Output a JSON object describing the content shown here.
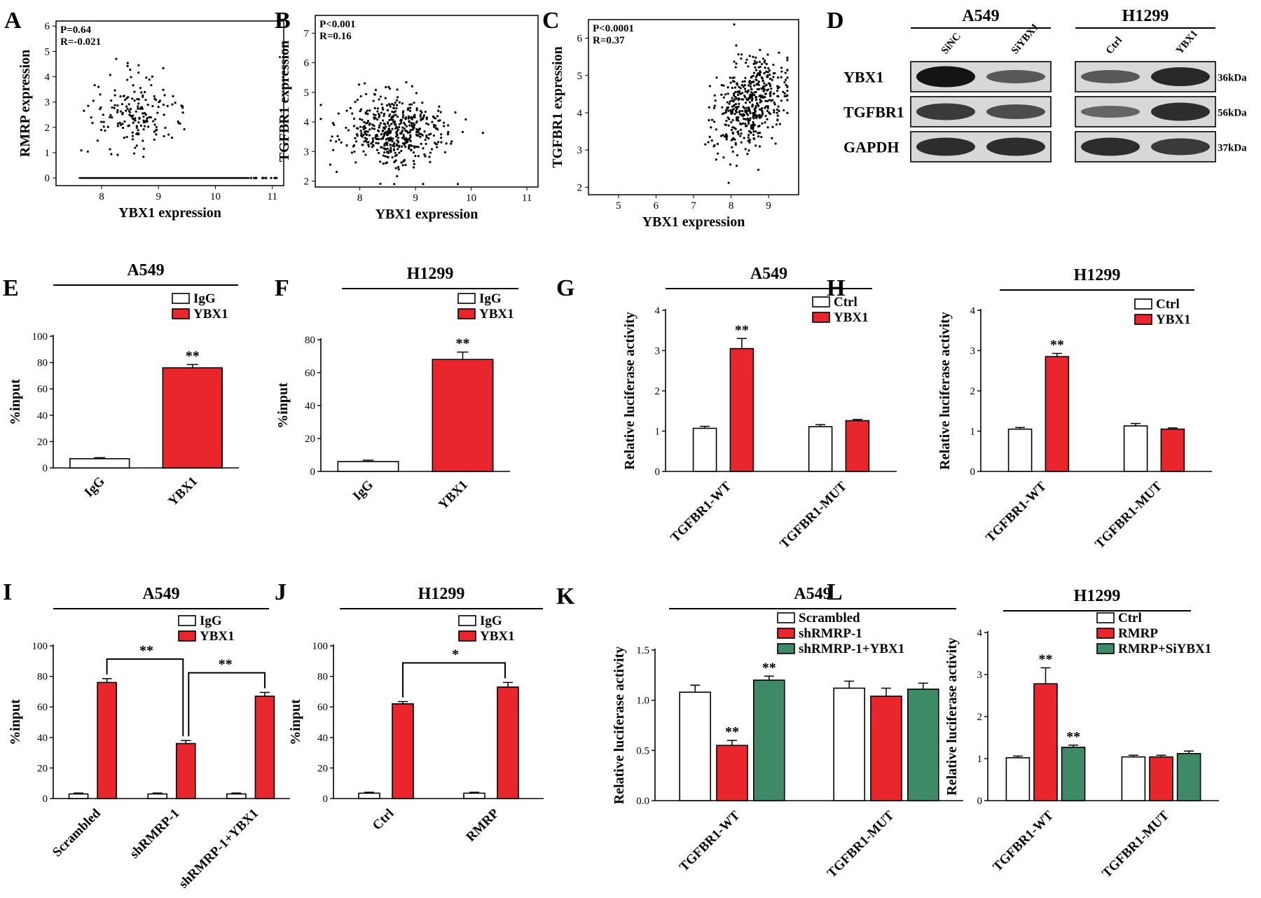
{
  "panel_labels": [
    "A",
    "B",
    "C",
    "D",
    "E",
    "F",
    "G",
    "H",
    "I",
    "J",
    "K",
    "L"
  ],
  "colors": {
    "white_bar": "#ffffff",
    "red_bar": "#e8262b",
    "green_bar": "#3f8a66",
    "axis": "#000000"
  },
  "chart_data": [
    {
      "panel": "A",
      "type": "scatter",
      "xlabel": "YBX1 expression",
      "ylabel": "RMRP expression",
      "xlim": [
        7.2,
        11.2
      ],
      "ylim": [
        -0.3,
        6.2
      ],
      "xticks": [
        "8",
        "9",
        "10",
        "11"
      ],
      "yticks": [
        "0",
        "1",
        "2",
        "3",
        "4",
        "5",
        "6"
      ],
      "annotations": [
        "P=0.64",
        "R=-0.021"
      ],
      "n_points": 180,
      "point_center": [
        8.6,
        2.7
      ],
      "point_spread": [
        0.4,
        0.8
      ],
      "zero_line": [
        7.6,
        10.6
      ]
    },
    {
      "panel": "B",
      "type": "scatter",
      "xlabel": "YBX1 expression",
      "ylabel": "TGFBR1 expression",
      "xlim": [
        7.2,
        11.2
      ],
      "ylim": [
        1.8,
        7.6
      ],
      "xticks": [
        "8",
        "9",
        "10",
        "11"
      ],
      "yticks": [
        "2",
        "3",
        "4",
        "5",
        "6",
        "7"
      ],
      "annotations": [
        "P<0.001",
        "R=0.16"
      ],
      "n_points": 500,
      "point_center": [
        8.6,
        3.7
      ],
      "point_spread": [
        0.45,
        0.6
      ]
    },
    {
      "panel": "C",
      "type": "scatter",
      "xlabel": "YBX1 expression",
      "ylabel": "TGFBR1 expression",
      "xlim": [
        4.2,
        9.8
      ],
      "ylim": [
        1.8,
        6.5
      ],
      "xticks": [
        "5",
        "6",
        "7",
        "8",
        "9"
      ],
      "yticks": [
        "2",
        "3",
        "4",
        "5",
        "6"
      ],
      "annotations": [
        "P<0.0001",
        "R=0.37"
      ],
      "n_points": 480,
      "point_center": [
        8.5,
        4.3
      ],
      "point_spread": [
        0.5,
        0.7
      ]
    },
    {
      "panel": "E",
      "type": "bar",
      "title": "A549",
      "ylabel": "%input",
      "ylim": [
        0,
        100
      ],
      "yticks": [
        "0",
        "20",
        "40",
        "60",
        "80",
        "100"
      ],
      "categories": [
        "IgG",
        "YBX1"
      ],
      "series": [
        {
          "name": "",
          "values": [
            7,
            76
          ],
          "errors": [
            0.8,
            2.5
          ],
          "colors": [
            "#ffffff",
            "#e8262b"
          ]
        }
      ],
      "legend": [
        {
          "name": "IgG",
          "color": "#ffffff"
        },
        {
          "name": "YBX1",
          "color": "#e8262b"
        }
      ],
      "significance": [
        {
          "label": "**",
          "bar": 1
        }
      ]
    },
    {
      "panel": "F",
      "type": "bar",
      "title": "H1299",
      "ylabel": "%input",
      "ylim": [
        0,
        80
      ],
      "yticks": [
        "0",
        "20",
        "40",
        "60",
        "80"
      ],
      "categories": [
        "IgG",
        "YBX1"
      ],
      "series": [
        {
          "name": "",
          "values": [
            6,
            68
          ],
          "errors": [
            0.8,
            4.5
          ],
          "colors": [
            "#ffffff",
            "#e8262b"
          ]
        }
      ],
      "legend": [
        {
          "name": "IgG",
          "color": "#ffffff"
        },
        {
          "name": "YBX1",
          "color": "#e8262b"
        }
      ],
      "significance": [
        {
          "label": "**",
          "bar": 1
        }
      ]
    },
    {
      "panel": "G",
      "type": "bar",
      "title": "A549",
      "ylabel": "Relative luciferase activity",
      "ylim": [
        0,
        4
      ],
      "yticks": [
        "0",
        "1",
        "2",
        "3",
        "4"
      ],
      "categories": [
        "TGFBR1-WT",
        "TGFBR1-MUT"
      ],
      "series": [
        {
          "name": "Ctrl",
          "values": [
            1.07,
            1.11
          ],
          "errors": [
            0.05,
            0.05
          ],
          "color": "#ffffff"
        },
        {
          "name": "YBX1",
          "values": [
            3.05,
            1.26
          ],
          "errors": [
            0.25,
            0.03
          ],
          "color": "#e8262b"
        }
      ],
      "significance": [
        {
          "label": "**",
          "series": 1,
          "category": 0
        }
      ]
    },
    {
      "panel": "H",
      "type": "bar",
      "title": "H1299",
      "ylabel": "Relative luciferase activity",
      "ylim": [
        0,
        4
      ],
      "yticks": [
        "0",
        "1",
        "2",
        "3",
        "4"
      ],
      "categories": [
        "TGFBR1-WT",
        "TGFBR1-MUT"
      ],
      "series": [
        {
          "name": "Ctrl",
          "values": [
            1.05,
            1.13
          ],
          "errors": [
            0.04,
            0.06
          ],
          "color": "#ffffff"
        },
        {
          "name": "YBX1",
          "values": [
            2.85,
            1.05
          ],
          "errors": [
            0.08,
            0.03
          ],
          "color": "#e8262b"
        }
      ],
      "significance": [
        {
          "label": "**",
          "series": 1,
          "category": 0
        }
      ]
    },
    {
      "panel": "I",
      "type": "bar",
      "title": "A549",
      "ylabel": "%input",
      "ylim": [
        0,
        100
      ],
      "yticks": [
        "0",
        "20",
        "40",
        "60",
        "80",
        "100"
      ],
      "categories": [
        "Scrambled",
        "shRMRP-1",
        "shRMRP-1+YBX1"
      ],
      "series": [
        {
          "name": "IgG",
          "values": [
            3,
            3,
            3
          ],
          "errors": [
            0.6,
            0.6,
            0.6
          ],
          "color": "#ffffff"
        },
        {
          "name": "YBX1",
          "values": [
            76,
            36,
            67
          ],
          "errors": [
            2.5,
            2,
            2.5
          ],
          "color": "#e8262b"
        }
      ],
      "brackets": [
        {
          "label": "**",
          "from_category": 0,
          "to_category": 1,
          "series": 1
        },
        {
          "label": "**",
          "from_category": 1,
          "to_category": 2,
          "series": 1
        }
      ]
    },
    {
      "panel": "J",
      "type": "bar",
      "title": "H1299",
      "ylabel": "%input",
      "ylim": [
        0,
        100
      ],
      "yticks": [
        "0",
        "20",
        "40",
        "60",
        "80",
        "100"
      ],
      "categories": [
        "Ctrl",
        "RMRP"
      ],
      "series": [
        {
          "name": "IgG",
          "values": [
            3.5,
            3.5
          ],
          "errors": [
            0.6,
            0.6
          ],
          "color": "#ffffff"
        },
        {
          "name": "YBX1",
          "values": [
            62,
            73
          ],
          "errors": [
            1.5,
            3
          ],
          "color": "#e8262b"
        }
      ],
      "brackets": [
        {
          "label": "*",
          "from_category": 0,
          "to_category": 1,
          "series": 1
        }
      ]
    },
    {
      "panel": "K",
      "type": "bar",
      "title": "A549",
      "ylabel": "Relative luciferase activity",
      "ylim": [
        0,
        1.5
      ],
      "yticks": [
        "0.0",
        "0.5",
        "1.0",
        "1.5"
      ],
      "categories": [
        "TGFBR1-WT",
        "TGFBR1-MUT"
      ],
      "series": [
        {
          "name": "Scrambled",
          "values": [
            1.08,
            1.12
          ],
          "errors": [
            0.07,
            0.07
          ],
          "color": "#ffffff"
        },
        {
          "name": "shRMRP-1",
          "values": [
            0.55,
            1.04
          ],
          "errors": [
            0.05,
            0.08
          ],
          "color": "#e8262b"
        },
        {
          "name": "shRMRP-1+YBX1",
          "values": [
            1.2,
            1.11
          ],
          "errors": [
            0.04,
            0.06
          ],
          "color": "#3f8a66"
        }
      ],
      "significance": [
        {
          "label": "**",
          "series": 1,
          "category": 0
        },
        {
          "label": "**",
          "series": 2,
          "category": 0
        }
      ]
    },
    {
      "panel": "L",
      "type": "bar",
      "title": "H1299",
      "ylabel": "Relative luciferase activity",
      "ylim": [
        0,
        4
      ],
      "yticks": [
        "0",
        "1",
        "2",
        "3",
        "4"
      ],
      "categories": [
        "TGFBR1-WT",
        "TGFBR1-MUT"
      ],
      "series": [
        {
          "name": "Ctrl",
          "values": [
            1.02,
            1.04
          ],
          "errors": [
            0.04,
            0.04
          ],
          "color": "#ffffff"
        },
        {
          "name": "RMRP",
          "values": [
            2.78,
            1.04
          ],
          "errors": [
            0.38,
            0.04
          ],
          "color": "#e8262b"
        },
        {
          "name": "RMRP+SiYBX1",
          "values": [
            1.27,
            1.12
          ],
          "errors": [
            0.05,
            0.06
          ],
          "color": "#3f8a66"
        }
      ],
      "significance": [
        {
          "label": "**",
          "series": 1,
          "category": 0
        },
        {
          "label": "**",
          "series": 2,
          "category": 0
        }
      ]
    }
  ],
  "western_blot": {
    "panel": "D",
    "groups": [
      {
        "cell_line": "A549",
        "lanes": [
          "SiNC",
          "SiYBX1"
        ]
      },
      {
        "cell_line": "H1299",
        "lanes": [
          "Ctrl",
          "YBX1"
        ]
      }
    ],
    "proteins": [
      {
        "name": "YBX1",
        "kda": "36kDa",
        "intensity": [
          [
            1.0,
            0.45
          ],
          [
            0.45,
            0.85
          ]
        ]
      },
      {
        "name": "TGFBR1",
        "kda": "56kDa",
        "intensity": [
          [
            0.7,
            0.55
          ],
          [
            0.35,
            0.8
          ]
        ]
      },
      {
        "name": "GAPDH",
        "kda": "37kDa",
        "intensity": [
          [
            0.8,
            0.8
          ],
          [
            0.8,
            0.7
          ]
        ]
      }
    ]
  }
}
